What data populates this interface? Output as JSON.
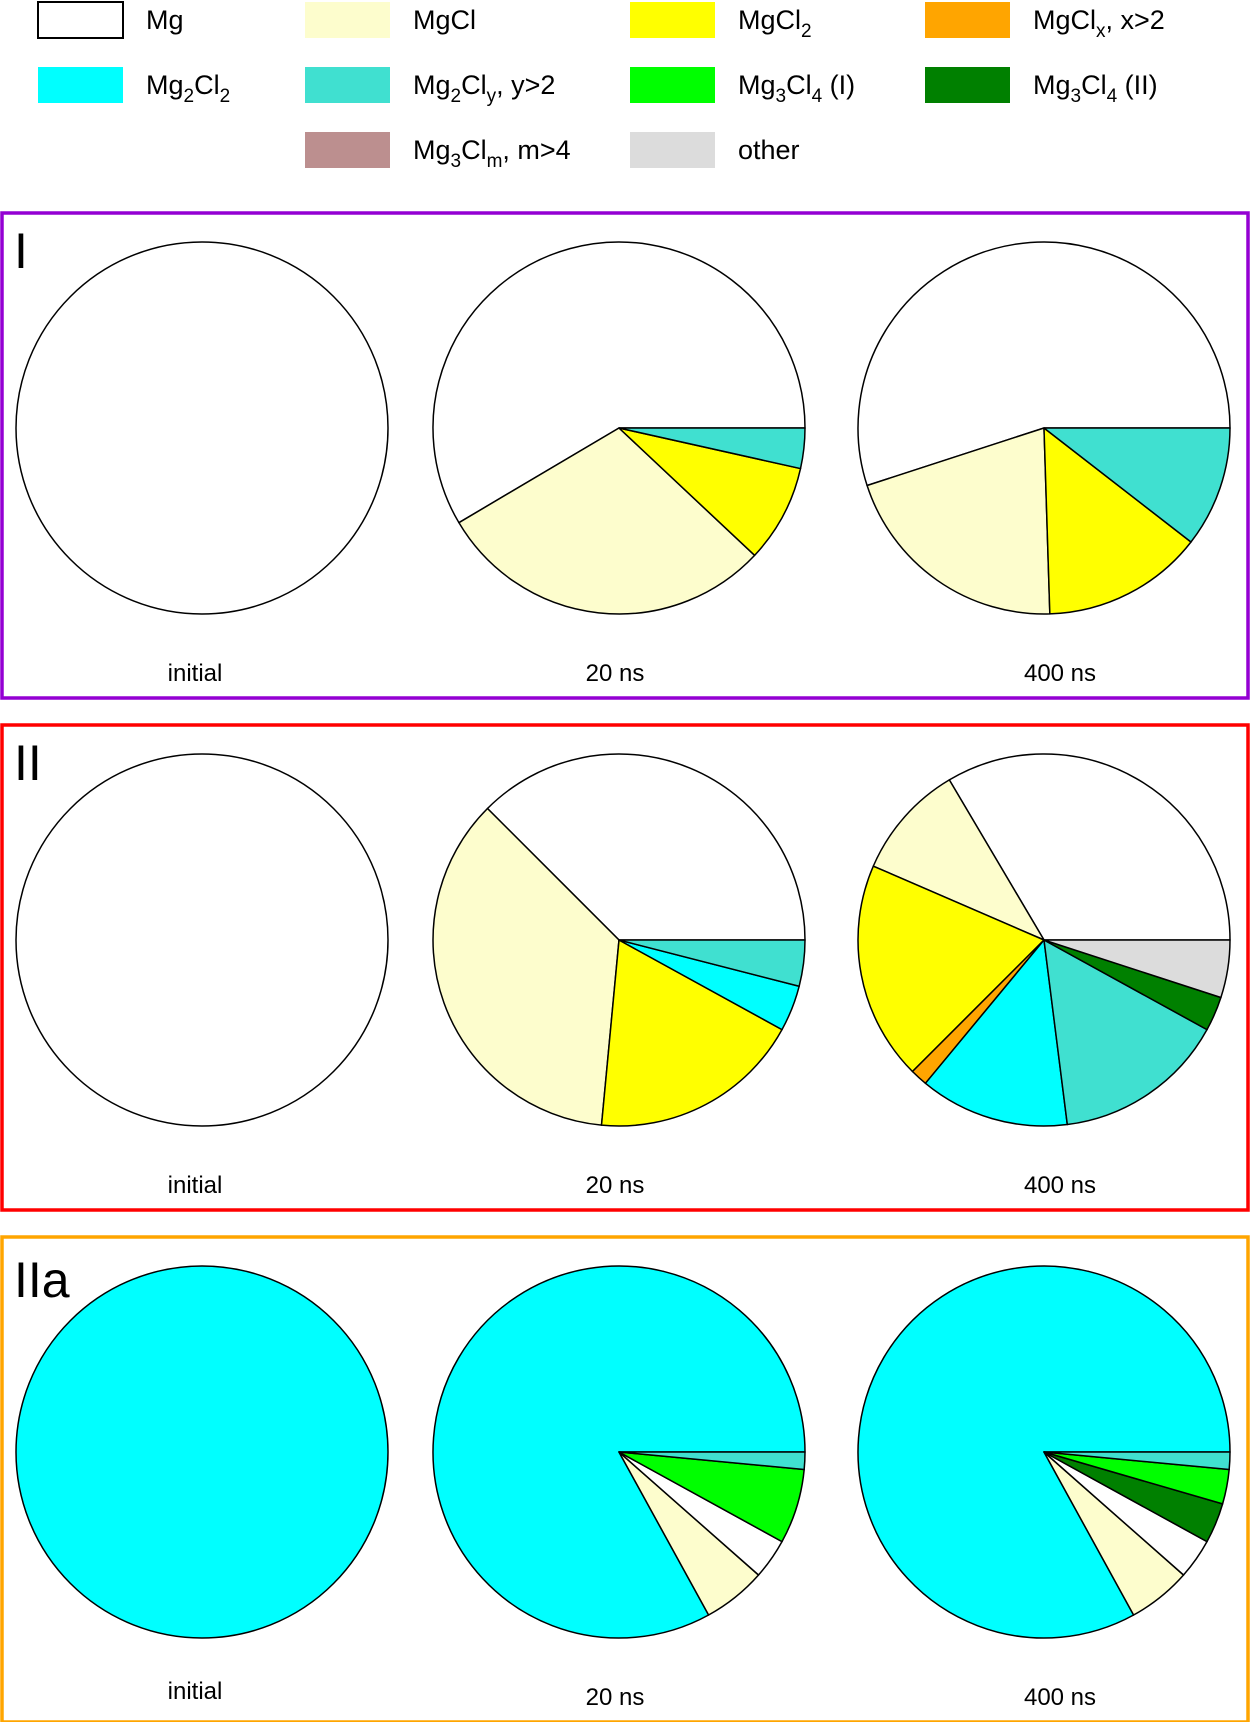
{
  "legend": [
    {
      "key": "Mg",
      "color": "#ffffff",
      "parts": [
        {
          "t": "Mg",
          "sub": false
        }
      ]
    },
    {
      "key": "MgCl",
      "color": "#fdfdcd",
      "parts": [
        {
          "t": "MgCl",
          "sub": false
        }
      ]
    },
    {
      "key": "MgCl2",
      "color": "#ffff00",
      "parts": [
        {
          "t": "MgCl",
          "sub": false
        },
        {
          "t": "2",
          "sub": true
        }
      ]
    },
    {
      "key": "MgClx",
      "color": "#ffa500",
      "parts": [
        {
          "t": "MgCl",
          "sub": false
        },
        {
          "t": "x",
          "sub": true
        },
        {
          "t": ", x>2",
          "sub": false
        }
      ]
    },
    {
      "key": "Mg2Cl2",
      "color": "#00ffff",
      "parts": [
        {
          "t": "Mg",
          "sub": false
        },
        {
          "t": "2",
          "sub": true
        },
        {
          "t": "Cl",
          "sub": false
        },
        {
          "t": "2",
          "sub": true
        }
      ]
    },
    {
      "key": "Mg2Cly",
      "color": "#40e0d0",
      "parts": [
        {
          "t": "Mg",
          "sub": false
        },
        {
          "t": "2",
          "sub": true
        },
        {
          "t": "Cl",
          "sub": false
        },
        {
          "t": "y",
          "sub": true
        },
        {
          "t": ", y>2",
          "sub": false
        }
      ]
    },
    {
      "key": "Mg3Cl4I",
      "color": "#00ff00",
      "parts": [
        {
          "t": "Mg",
          "sub": false
        },
        {
          "t": "3",
          "sub": true
        },
        {
          "t": "Cl",
          "sub": false
        },
        {
          "t": "4",
          "sub": true
        },
        {
          "t": " (I)",
          "sub": false
        }
      ]
    },
    {
      "key": "Mg3Cl4II",
      "color": "#008000",
      "parts": [
        {
          "t": "Mg",
          "sub": false
        },
        {
          "t": "3",
          "sub": true
        },
        {
          "t": "Cl",
          "sub": false
        },
        {
          "t": "4",
          "sub": true
        },
        {
          "t": " (II)",
          "sub": false
        }
      ]
    },
    {
      "key": "Mg3Clm",
      "color": "#bc8f8f",
      "parts": [
        {
          "t": "Mg",
          "sub": false
        },
        {
          "t": "3",
          "sub": true
        },
        {
          "t": "Cl",
          "sub": false
        },
        {
          "t": "m",
          "sub": true
        },
        {
          "t": ", m>4",
          "sub": false
        }
      ]
    },
    {
      "key": "other",
      "color": "#dcdcdc",
      "parts": [
        {
          "t": "other",
          "sub": false
        }
      ]
    }
  ],
  "chart_data": [
    {
      "type": "pie",
      "panel": "I",
      "border_color": "#9400d3",
      "pies": [
        {
          "label": "initial",
          "slices": [
            {
              "key": "Mg",
              "value": 100
            }
          ]
        },
        {
          "label": "20 ns",
          "slices": [
            {
              "key": "Mg",
              "value": 58.5
            },
            {
              "key": "MgCl",
              "value": 29.5
            },
            {
              "key": "MgCl2",
              "value": 8.5
            },
            {
              "key": "Mg2Cly",
              "value": 3.5
            }
          ]
        },
        {
          "label": "400 ns",
          "slices": [
            {
              "key": "Mg",
              "value": 55
            },
            {
              "key": "MgCl",
              "value": 20.5
            },
            {
              "key": "MgCl2",
              "value": 14
            },
            {
              "key": "Mg2Cly",
              "value": 10.5
            }
          ]
        }
      ]
    },
    {
      "type": "pie",
      "panel": "II",
      "border_color": "#ff0000",
      "pies": [
        {
          "label": "initial",
          "slices": [
            {
              "key": "Mg",
              "value": 100
            }
          ]
        },
        {
          "label": "20 ns",
          "slices": [
            {
              "key": "Mg",
              "value": 37.5
            },
            {
              "key": "MgCl",
              "value": 36
            },
            {
              "key": "MgCl2",
              "value": 18.5
            },
            {
              "key": "Mg2Cl2",
              "value": 4
            },
            {
              "key": "Mg2Cly",
              "value": 4
            }
          ]
        },
        {
          "label": "400 ns",
          "slices": [
            {
              "key": "Mg",
              "value": 33.5
            },
            {
              "key": "MgCl",
              "value": 10
            },
            {
              "key": "MgCl2",
              "value": 19
            },
            {
              "key": "MgClx",
              "value": 1.5
            },
            {
              "key": "Mg2Cl2",
              "value": 13
            },
            {
              "key": "Mg2Cly",
              "value": 15
            },
            {
              "key": "Mg3Cl4II",
              "value": 3
            },
            {
              "key": "other",
              "value": 5
            }
          ]
        }
      ]
    },
    {
      "type": "pie",
      "panel": "IIa",
      "border_color": "#ffa500",
      "pies": [
        {
          "label": "initial",
          "slices": [
            {
              "key": "Mg2Cl2",
              "value": 100
            }
          ]
        },
        {
          "label": "20 ns",
          "slices": [
            {
              "key": "Mg2Cl2",
              "value": 83
            },
            {
              "key": "MgCl",
              "value": 5.5
            },
            {
              "key": "Mg",
              "value": 3.5
            },
            {
              "key": "Mg3Cl4I",
              "value": 6.5
            },
            {
              "key": "Mg2Cly",
              "value": 1.5
            }
          ]
        },
        {
          "label": "400 ns",
          "slices": [
            {
              "key": "Mg2Cl2",
              "value": 83
            },
            {
              "key": "MgCl",
              "value": 5.5
            },
            {
              "key": "Mg",
              "value": 3.5
            },
            {
              "key": "Mg3Cl4II",
              "value": 3.5
            },
            {
              "key": "Mg3Cl4I",
              "value": 3
            },
            {
              "key": "Mg2Cly",
              "value": 1.5
            }
          ]
        }
      ]
    }
  ]
}
